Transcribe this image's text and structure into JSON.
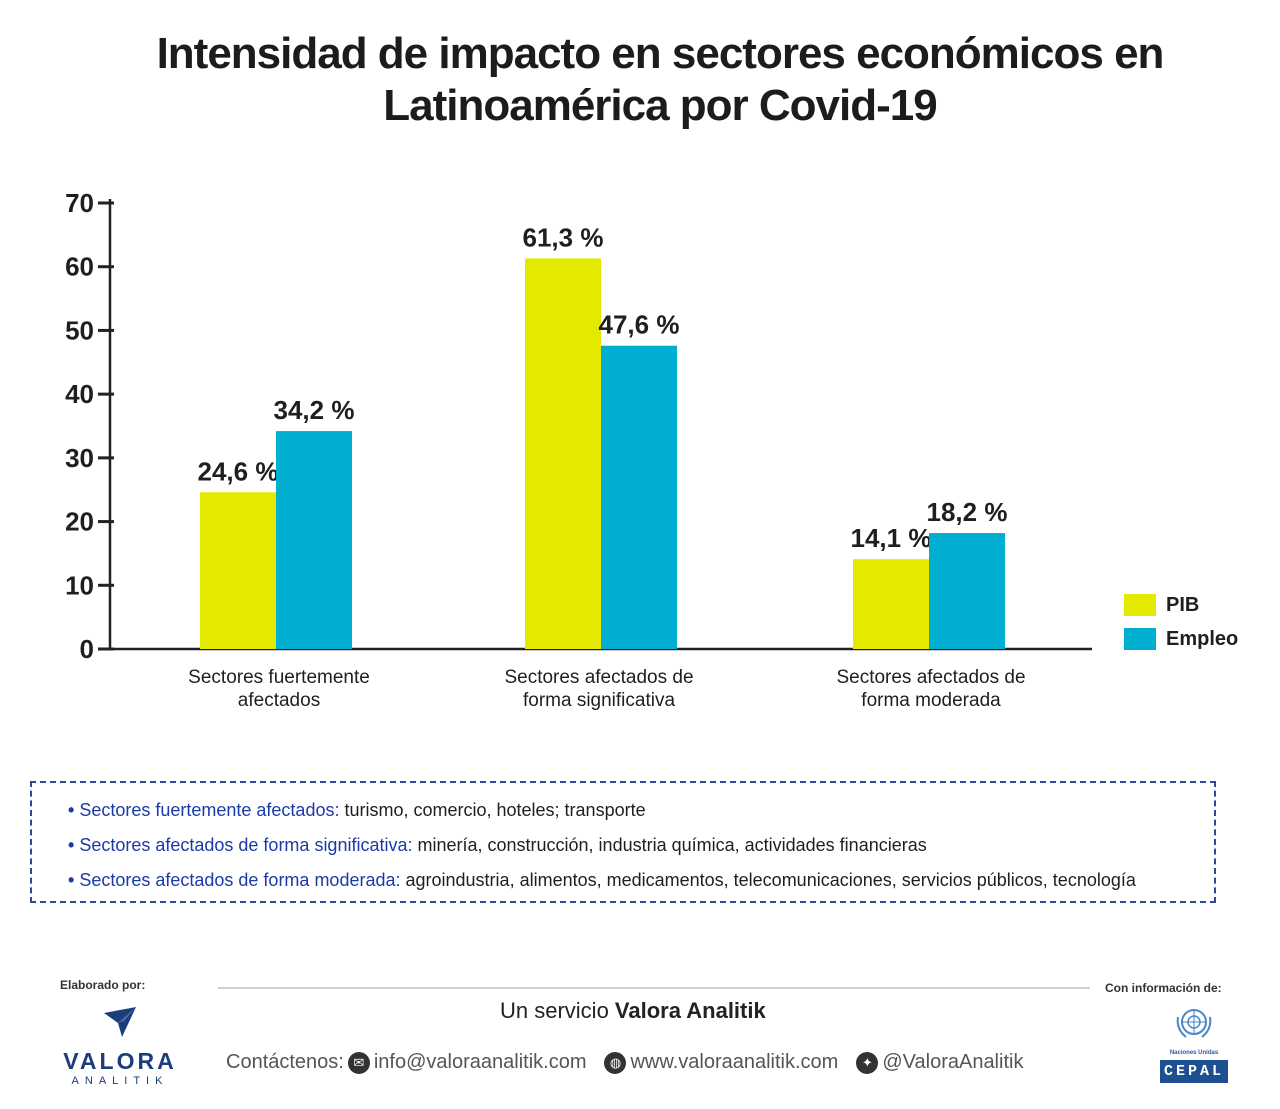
{
  "title": {
    "line1": "Intensidad de impacto en sectores económicos en",
    "line2": "Latinoamérica por Covid-19"
  },
  "chart_data": {
    "type": "bar",
    "categories": [
      [
        "Sectores fuertemente",
        "afectados"
      ],
      [
        "Sectores afectados de",
        "forma significativa"
      ],
      [
        "Sectores afectados de",
        "forma moderada"
      ]
    ],
    "series": [
      {
        "name": "PIB",
        "values": [
          24.6,
          61.3,
          14.1
        ],
        "labels": [
          "24,6 %",
          "61,3 %",
          "14,1 %"
        ],
        "color": "#e3ea00"
      },
      {
        "name": "Empleo",
        "values": [
          34.2,
          47.6,
          18.2
        ],
        "labels": [
          "34,2 %",
          "47,6 %",
          "18,2 %"
        ],
        "color": "#00afcf"
      }
    ],
    "ylim": [
      0,
      70
    ],
    "yticks": [
      "0",
      "10",
      "20",
      "30",
      "40",
      "50",
      "60",
      "70"
    ],
    "grid": false,
    "legend_position": "right"
  },
  "notes": [
    {
      "key": "Sectores fuertemente afectados:",
      "value": " turismo, comercio, hoteles; transporte"
    },
    {
      "key": "Sectores afectados de forma significativa:",
      "value": " minería, construcción, industria química, actividades financieras"
    },
    {
      "key": "Sectores afectados de forma moderada:",
      "value": " agroindustria, alimentos, medicamentos, telecomunicaciones, servicios públicos, tecnología"
    }
  ],
  "footer": {
    "by_label": "Elaborado por:",
    "info_label": "Con información de:",
    "service_prefix": "Un servicio ",
    "service_brand": "Valora Analitik",
    "contact_label": "Contáctenos:",
    "email": "info@valoraanalitik.com",
    "website": "www.valoraanalitik.com",
    "twitter": "@ValoraAnalitik",
    "logo_name": "VALORA",
    "logo_sub": "ANALITIK",
    "un_label": "Naciones Unidas",
    "cepal_label": "CEPAL"
  },
  "colors": {
    "accent_blue": "#1b3aa8",
    "pib": "#e3ea00",
    "empleo": "#00afcf"
  }
}
